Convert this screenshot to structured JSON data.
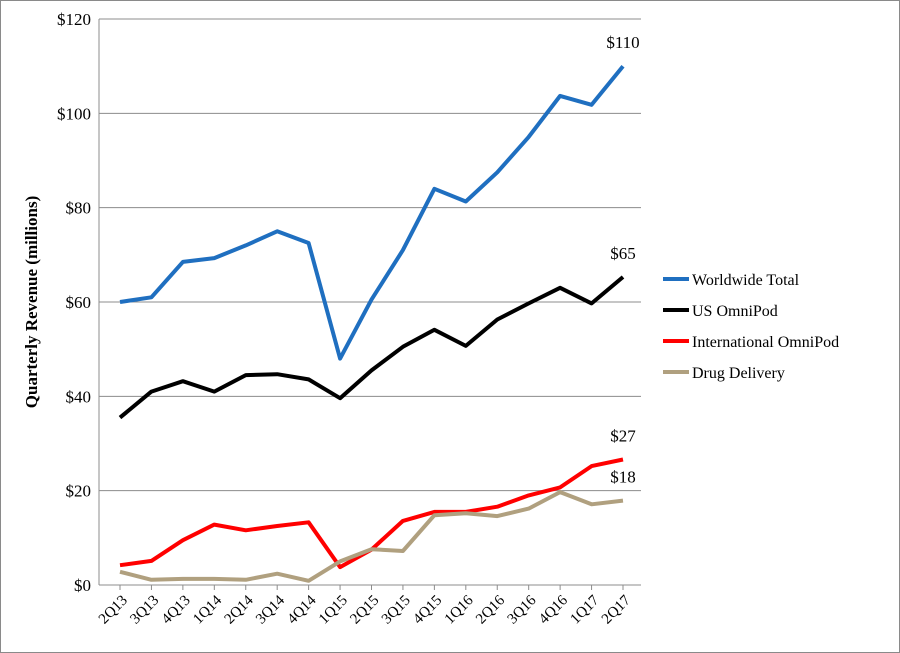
{
  "chart_data": {
    "type": "line",
    "title": "",
    "xlabel": "",
    "ylabel": "Quarterly Revenue (millions)",
    "ylim": [
      0,
      120
    ],
    "yticks": [
      0,
      20,
      40,
      60,
      80,
      100,
      120
    ],
    "ytick_labels": [
      "$0",
      "$20",
      "$40",
      "$60",
      "$80",
      "$100",
      "$120"
    ],
    "grid": "horizontal",
    "legend_position": "right",
    "categories": [
      "2Q13",
      "3Q13",
      "4Q13",
      "1Q14",
      "2Q14",
      "3Q14",
      "4Q14",
      "1Q15",
      "2Q15",
      "3Q15",
      "4Q15",
      "1Q16",
      "2Q16",
      "3Q16",
      "4Q16",
      "1Q17",
      "2Q17"
    ],
    "series": [
      {
        "name": "Worldwide Total",
        "color": "#1f6fc0",
        "end_label": "$110",
        "values": [
          60,
          61,
          68.5,
          69.3,
          72,
          75,
          72.5,
          48,
          60.5,
          71,
          84,
          81.3,
          87.5,
          95,
          103.7,
          101.8,
          110
        ]
      },
      {
        "name": "US OmniPod",
        "color": "#000000",
        "end_label": "$65",
        "values": [
          35.5,
          41,
          43.2,
          41,
          44.5,
          44.7,
          43.6,
          39.6,
          45.5,
          50.5,
          54.1,
          50.7,
          56.3,
          59.7,
          63,
          59.7,
          65.3
        ]
      },
      {
        "name": "International OmniPod",
        "color": "#ff0000",
        "end_label": "$27",
        "values": [
          4.2,
          5.1,
          9.5,
          12.8,
          11.6,
          12.5,
          13.3,
          3.8,
          7.5,
          13.6,
          15.5,
          15.5,
          16.6,
          19,
          20.7,
          25.2,
          26.6
        ]
      },
      {
        "name": "Drug Delivery",
        "color": "#b0a07f",
        "end_label": "$18",
        "values": [
          2.8,
          1.1,
          1.3,
          1.3,
          1.1,
          2.4,
          0.9,
          5,
          7.6,
          7.2,
          14.8,
          15.2,
          14.6,
          16.2,
          19.7,
          17.1,
          17.9
        ]
      }
    ]
  }
}
